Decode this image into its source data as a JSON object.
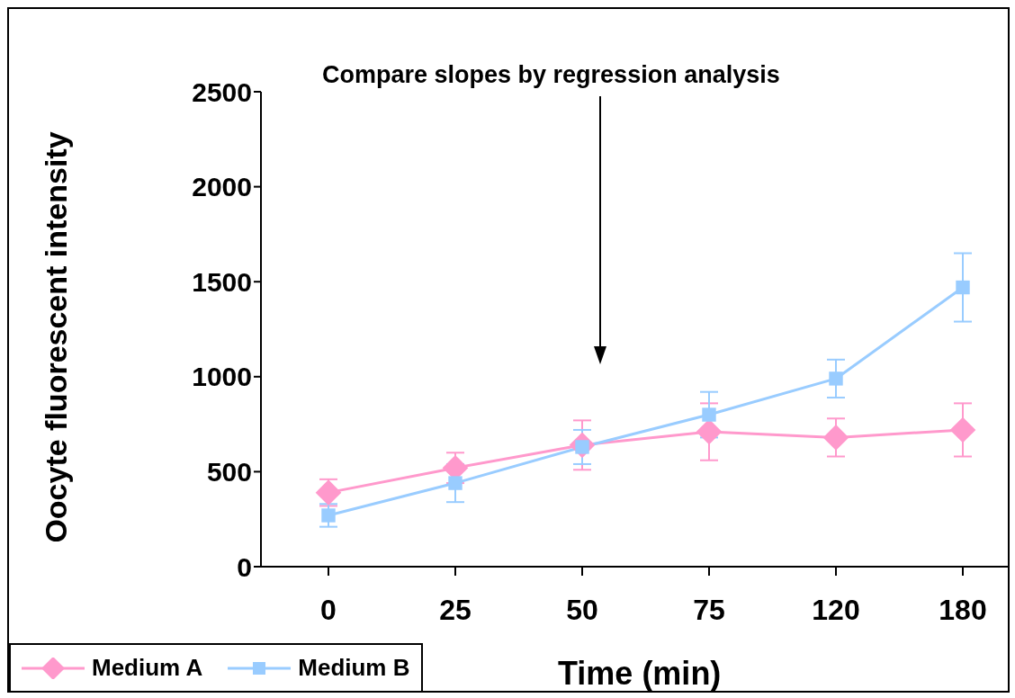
{
  "chart_data": {
    "type": "line",
    "xlabel": "Time (min)",
    "ylabel": "Oocyte fluorescent intensity",
    "categories": [
      "0",
      "25",
      "50",
      "75",
      "120",
      "180"
    ],
    "ylim": [
      0,
      2500
    ],
    "yticks": [
      0,
      500,
      1000,
      1500,
      2000,
      2500
    ],
    "legend": "bottom left",
    "annotations": [
      "Compare slopes by regression analysis"
    ],
    "series": [
      {
        "name": "Medium A",
        "color": "#ff99cc",
        "marker": "diamond",
        "values": [
          390,
          520,
          640,
          710,
          680,
          720
        ],
        "errors": [
          70,
          80,
          130,
          150,
          100,
          140
        ]
      },
      {
        "name": "Medium B",
        "color": "#99ccff",
        "marker": "square",
        "values": [
          270,
          440,
          630,
          800,
          990,
          1470
        ],
        "errors": [
          60,
          100,
          90,
          120,
          100,
          180
        ]
      }
    ]
  }
}
